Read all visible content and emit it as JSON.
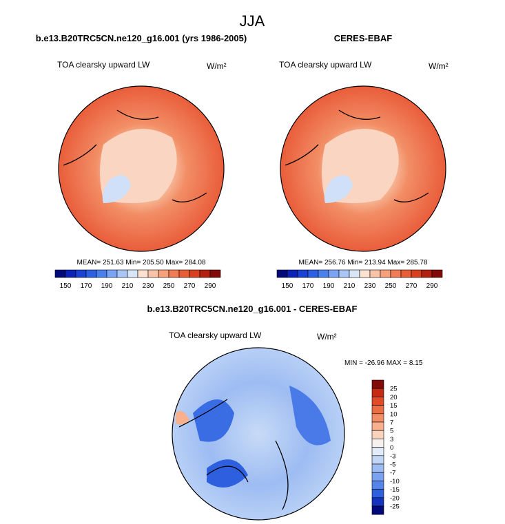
{
  "title": "JJA",
  "panels": [
    {
      "case": "b.e13.B20TRC5CN.ne120_g16.001 (yrs 1986-2005)",
      "field": "TOA clearsky upward LW",
      "units": "W/m²",
      "stats": "MEAN= 251.63  Min= 205.50  Max= 284.08"
    },
    {
      "case": "CERES-EBAF",
      "field": "TOA clearsky upward LW",
      "units": "W/m²",
      "stats": "MEAN= 256.76  Min= 213.94  Max= 285.78"
    }
  ],
  "colorbar": {
    "labels": [
      150,
      170,
      190,
      210,
      230,
      250,
      270,
      290
    ],
    "colors": [
      "#020a7a",
      "#0a22b8",
      "#1b40d4",
      "#2c5fe4",
      "#4a80ee",
      "#7ba5f4",
      "#a9c6f6",
      "#d8e6f7",
      "#fde2d2",
      "#f9c3a8",
      "#f6a07c",
      "#f07d56",
      "#e85d36",
      "#d8401f",
      "#b22010",
      "#820a08"
    ]
  },
  "difference": {
    "case": "b.e13.B20TRC5CN.ne120_g16.001 - CERES-EBAF",
    "field": "TOA clearsky upward LW",
    "units": "W/m²",
    "stats": "MIN = -26.96 MAX =   8.15",
    "colorbar": {
      "labels": [
        25,
        20,
        15,
        10,
        7,
        5,
        3,
        0,
        -3,
        -5,
        -7,
        -10,
        -15,
        -20,
        -25
      ],
      "colors": [
        "#820a08",
        "#c42a14",
        "#e04a26",
        "#ec6c44",
        "#f48e66",
        "#f8b08e",
        "#fbd3bc",
        "#f4f1ee",
        "#e2ecf8",
        "#c2d6f6",
        "#9dbcf4",
        "#7aa2f0",
        "#5585ea",
        "#2d5fdf",
        "#1534bd",
        "#03087a"
      ]
    }
  }
}
